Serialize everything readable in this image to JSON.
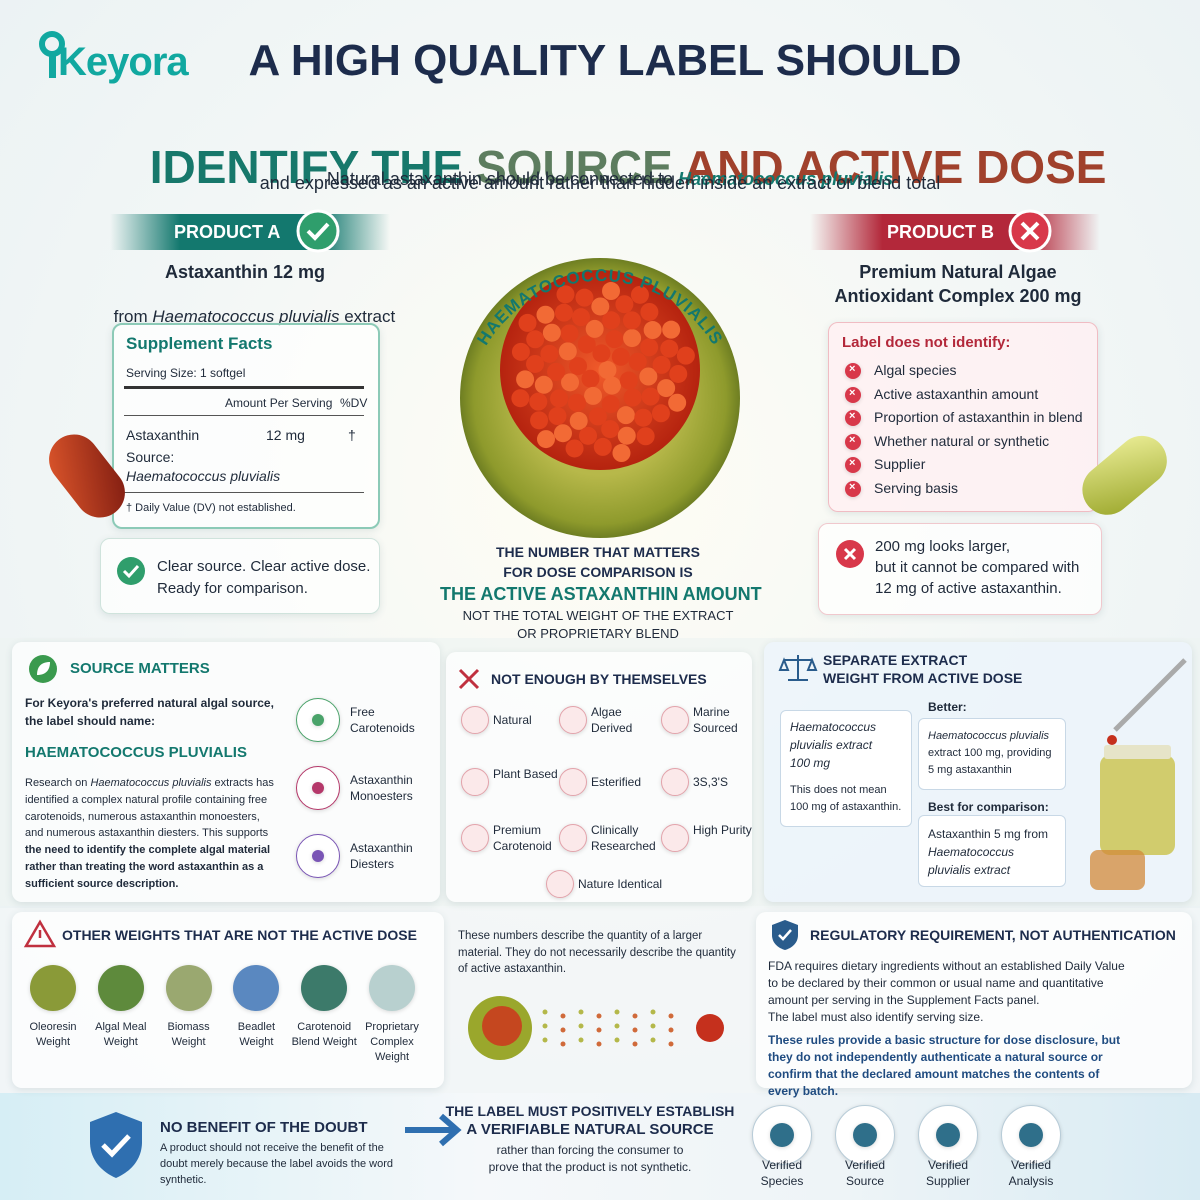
{
  "logo": "Keyora",
  "header": {
    "title_line1": "A HIGH QUALITY LABEL SHOULD",
    "title_line2": [
      "IDENTIFY THE ",
      "SOURCE ",
      "AND ACTIVE DOSE"
    ],
    "subtitle_line1": [
      "Natural astaxanthin should be connected to ",
      "Haematococcus pluvialis"
    ],
    "subtitle_line2": "and expressed as an active amount rather than hidden inside an extract or blend total"
  },
  "product_a": {
    "badge": "PRODUCT A",
    "name": "Astaxanthin 12 mg",
    "source": [
      "from ",
      "Haematococcus pluvialis",
      " extract"
    ],
    "facts": {
      "title": "Supplement Facts",
      "serving": "Serving Size: 1 softgel",
      "col_amount": "Amount Per Serving",
      "col_dv": "%DV",
      "ingredient": "Astaxanthin",
      "amount": "12 mg",
      "dv": "†",
      "source_label": "Source:",
      "source_value": "Haematococcus pluvialis",
      "footnote": "† Daily Value (DV) not established."
    },
    "verdict": [
      "Clear source. Clear active dose.",
      "Ready for comparison."
    ]
  },
  "product_b": {
    "badge": "PRODUCT B",
    "name": [
      "Premium Natural Algae",
      "Antioxidant Complex 200 mg"
    ],
    "missing_title": "Label does not identify:",
    "missing": [
      "Algal species",
      "Active astaxanthin amount",
      "Proportion of astaxanthin in blend",
      "Whether natural or synthetic",
      "Supplier",
      "Serving basis"
    ],
    "verdict": [
      "200 mg looks larger,",
      "but it cannot be compared with",
      "12 mg of active astaxanthin."
    ]
  },
  "center": {
    "arc_label": "HAEMATOCOCCUS PLUVIALIS",
    "lines": [
      "THE NUMBER THAT MATTERS",
      "FOR DOSE COMPARISON IS"
    ],
    "highlight": "THE ACTIVE ASTAXANTHIN AMOUNT",
    "tail": [
      "NOT THE TOTAL WEIGHT OF THE EXTRACT",
      "OR PROPRIETARY BLEND"
    ]
  },
  "source_matters": {
    "title": "SOURCE MATTERS",
    "intro": "For Keyora's preferred natural algal source, the label should name:",
    "species": "HAEMATOCOCCUS PLUVIALIS",
    "body": [
      "Research on ",
      "Haematococcus pluvialis",
      " extracts has identified a complex natural profile containing free carotenoids, numerous astaxanthin monoesters, and numerous astaxanthin diesters. This supports ",
      "the need to identify the complete algal material rather than treating the word astaxanthin as a sufficient source description."
    ],
    "items": [
      "Free Carotenoids",
      "Astaxanthin Monoesters",
      "Astaxanthin Diesters"
    ]
  },
  "not_enough": {
    "title": "NOT ENOUGH BY THEMSELVES",
    "items": [
      "Natural",
      "Algae Derived",
      "Marine Sourced",
      "Plant Based",
      "Esterified",
      "3S,3'S",
      "Premium Carotenoid",
      "Clinically Researched",
      "High Purity",
      "Nature Identical"
    ]
  },
  "separate": {
    "title": "SEPARATE EXTRACT WEIGHT FROM ACTIVE DOSE",
    "left_box": "Haematococcus pluvialis extract 100 mg",
    "left_note": "This does not mean 100 mg of astaxanthin.",
    "better_label": "Better:",
    "better": [
      "Haematococcus pluvialis",
      " extract 100 mg, providing 5 mg astaxanthin"
    ],
    "best_label": "Best for comparison:",
    "best": [
      "Astaxanthin 5 mg from ",
      "Haematococcus pluvialis",
      " extract"
    ]
  },
  "other_weights": {
    "title": "OTHER WEIGHTS THAT ARE NOT THE ACTIVE DOSE",
    "items": [
      "Oleoresin Weight",
      "Algal Meal Weight",
      "Biomass Weight",
      "Beadlet Weight",
      "Carotenoid Blend Weight",
      "Proprietary Complex Weight"
    ],
    "note": "These numbers describe the quantity of a larger material. They do not necessarily describe the quantity of active astaxanthin."
  },
  "regulatory": {
    "title": "REGULATORY REQUIREMENT, NOT AUTHENTICATION",
    "body": "FDA requires dietary ingredients without an established Daily Value to be declared by their common or usual name and quantitative amount per serving in the Supplement Facts panel.",
    "body2": "The label must also identify serving size.",
    "emphasis": "These rules provide a basic structure for dose disclosure, but they do not independently authenticate a natural source or confirm that the declared amount matches the contents of every batch."
  },
  "footer": {
    "benefit_title": "NO BENEFIT OF THE DOUBT",
    "benefit_text": "A product should not receive the benefit of the doubt merely because the label avoids the word synthetic.",
    "establish_title": [
      "THE LABEL MUST POSITIVELY ESTABLISH",
      "A VERIFIABLE NATURAL SOURCE"
    ],
    "establish_text": "rather than forcing the consumer to prove that the product is not synthetic.",
    "verified": [
      "Verified Species",
      "Verified Source",
      "Verified Supplier",
      "Verified Analysis"
    ]
  }
}
